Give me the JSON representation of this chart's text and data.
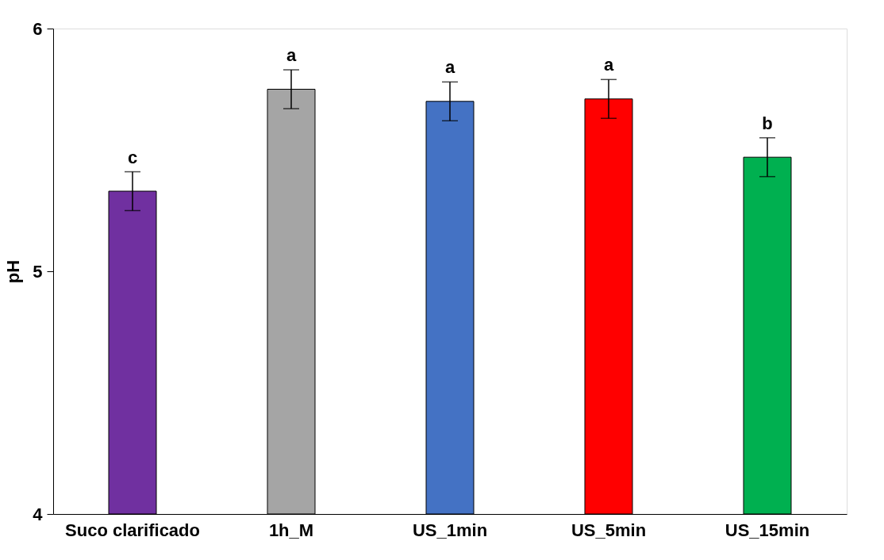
{
  "chart_data": {
    "type": "bar",
    "ylabel": "pH",
    "categories": [
      "Suco clarificado",
      "1h_M",
      "US_1min",
      "US_5min",
      "US_15min"
    ],
    "values": [
      5.33,
      5.75,
      5.7,
      5.71,
      5.47
    ],
    "colors": [
      "#7030a0",
      "#a5a5a5",
      "#4472c4",
      "#ff0000",
      "#00b050"
    ],
    "errors": [
      0.08,
      0.08,
      0.08,
      0.08,
      0.08
    ],
    "ylim": [
      4,
      6
    ],
    "yticks": [
      4,
      5,
      6
    ],
    "grid": false,
    "annotations": [
      {
        "text": "c",
        "x": "Suco clarificado",
        "y": 5.41
      },
      {
        "text": "a",
        "x": "1h_M",
        "y": 5.83
      },
      {
        "text": "a",
        "x": "US_1min",
        "y": 5.78
      },
      {
        "text": "a",
        "x": "US_5min",
        "y": 5.79
      },
      {
        "text": "b",
        "x": "US_15min",
        "y": 5.55
      }
    ]
  }
}
